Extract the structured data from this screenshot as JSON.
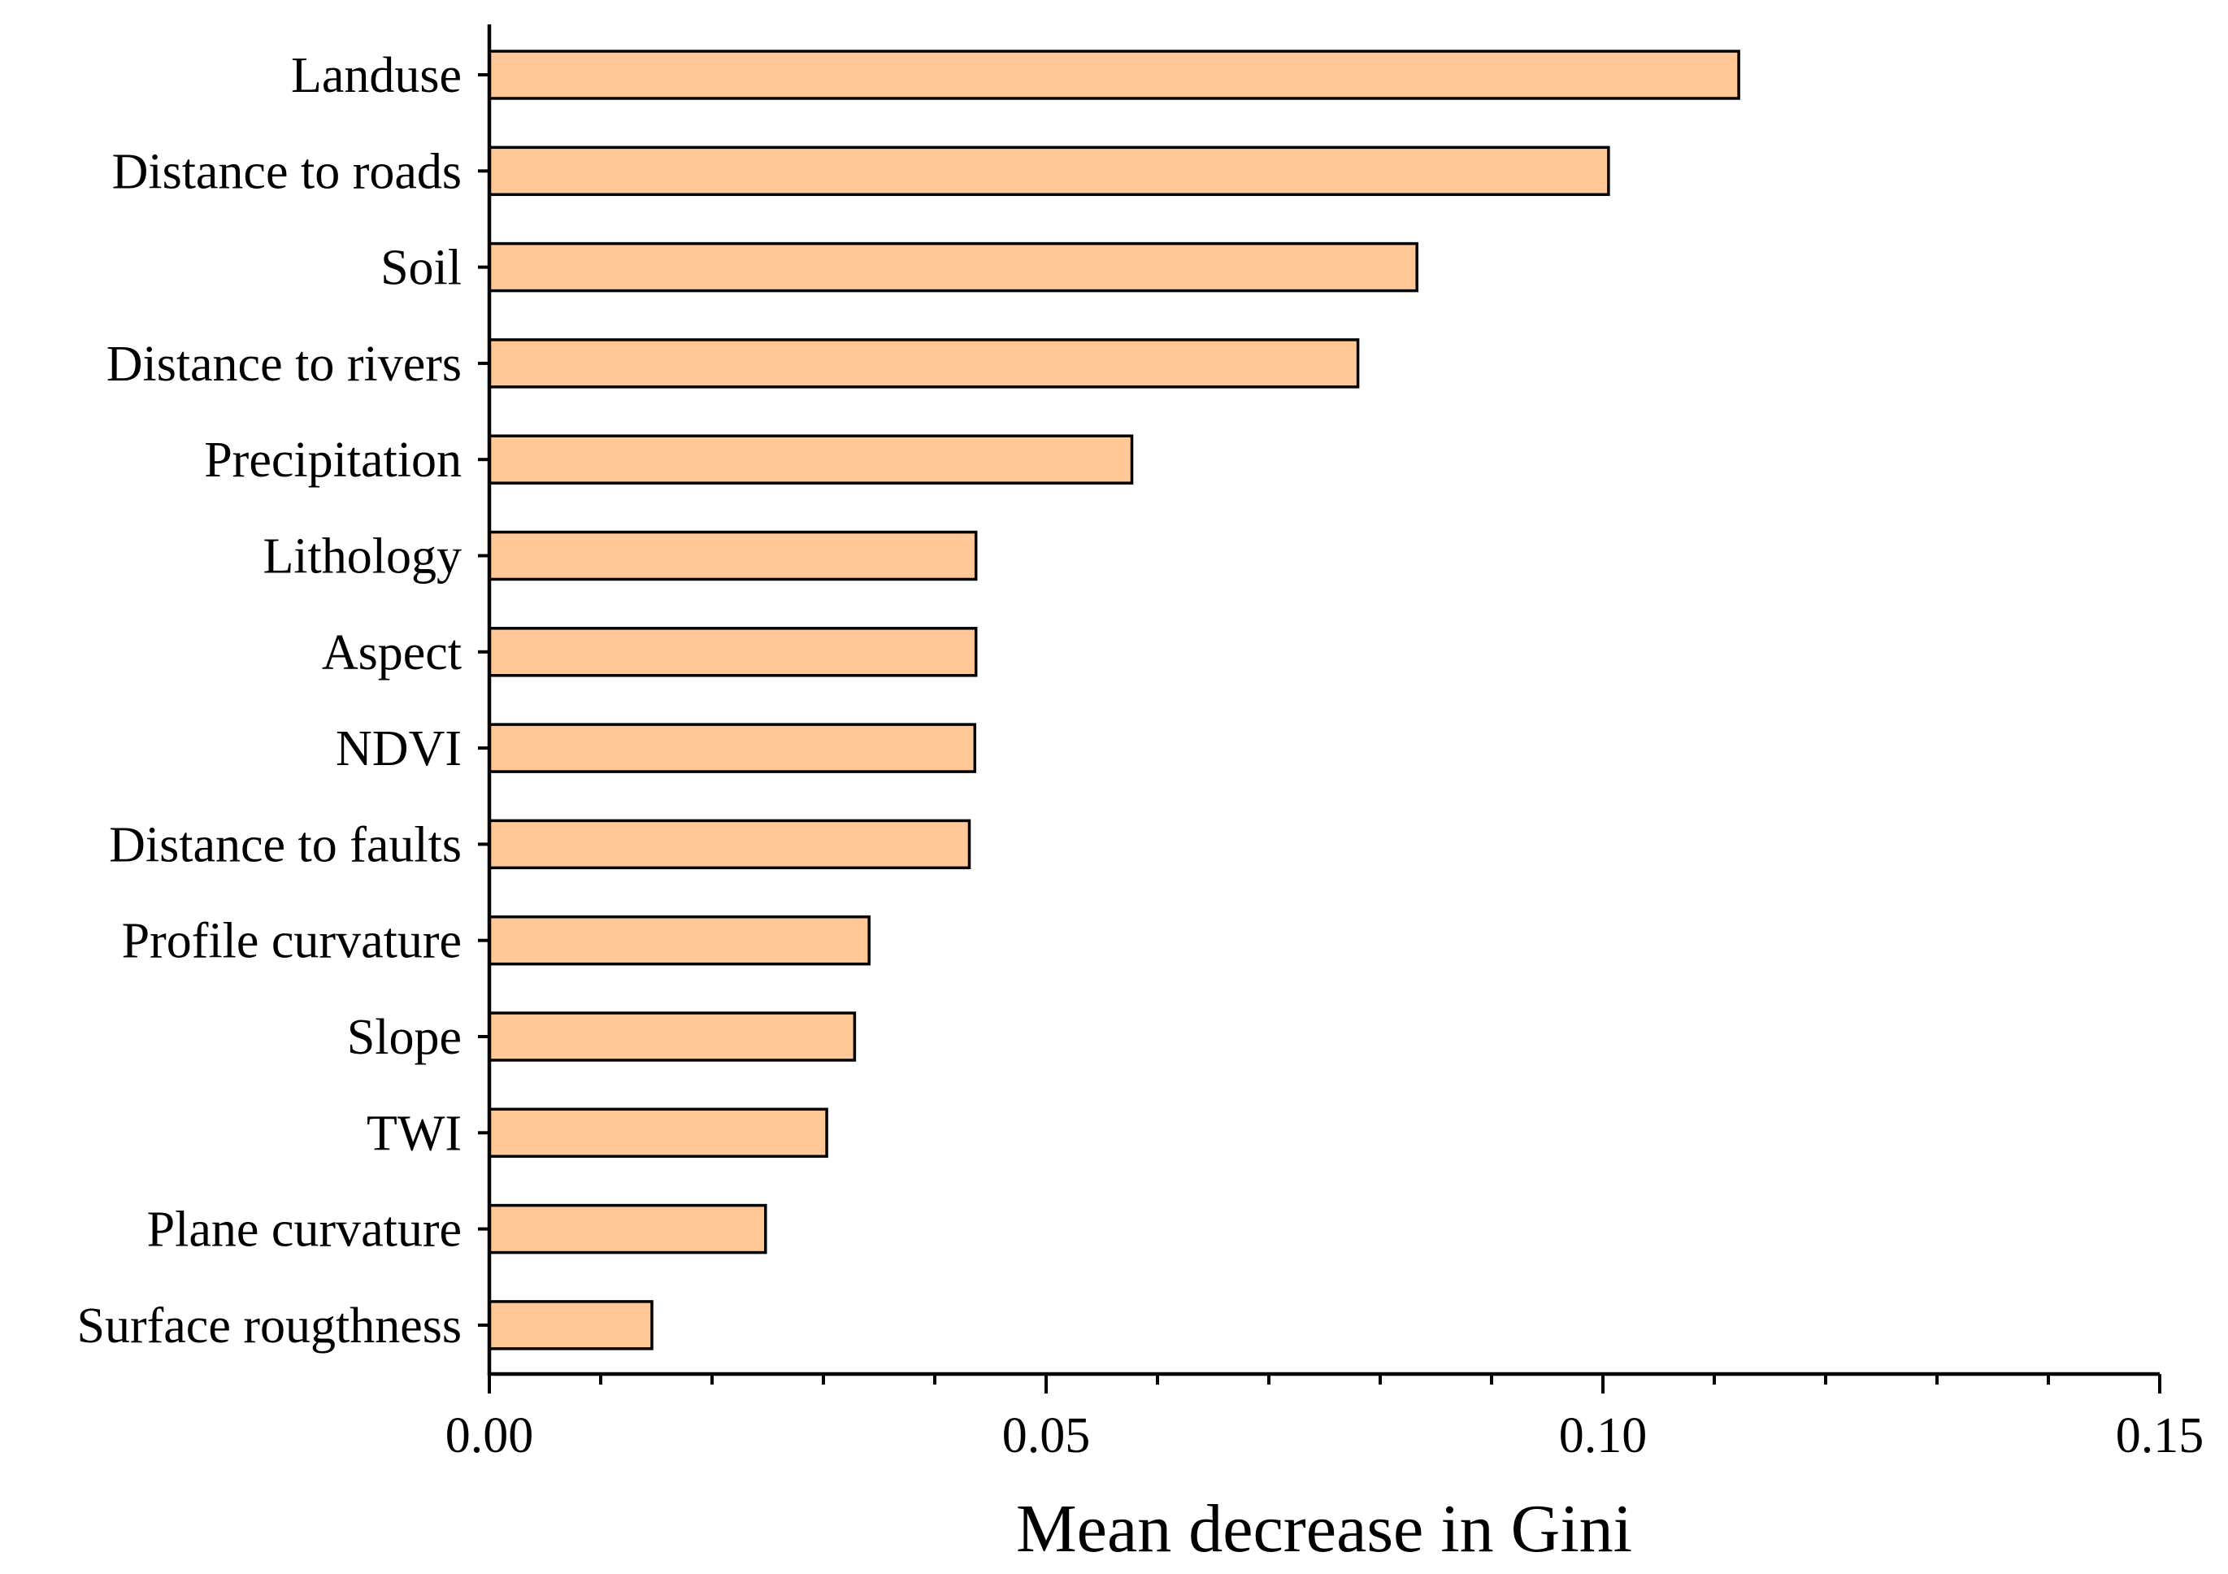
{
  "chart_data": {
    "type": "bar",
    "orientation": "horizontal",
    "title": "",
    "xlabel": "Mean decrease in Gini",
    "ylabel": "",
    "xlim": [
      0,
      0.15
    ],
    "x_ticks": [
      0.0,
      0.05,
      0.1,
      0.15
    ],
    "x_tick_labels": [
      "0.00",
      "0.05",
      "0.10",
      "0.15"
    ],
    "x_minor_tick_step": 0.01,
    "grid": false,
    "legend": "none",
    "bar_color": "#FFC896",
    "edge_color": "#000000",
    "categories": [
      "Landuse",
      "Distance to roads",
      "Soil",
      "Distance to rivers",
      "Precipitation",
      "Lithology",
      "Aspect",
      "NDVI",
      "Distance to faults",
      "Profile curvature",
      "Slope",
      "TWI",
      "Plane curvature",
      "Surface rougthness"
    ],
    "values": [
      0.1122,
      0.1005,
      0.0833,
      0.078,
      0.0577,
      0.0437,
      0.0437,
      0.0436,
      0.0431,
      0.0341,
      0.0328,
      0.0303,
      0.0248,
      0.0146
    ]
  }
}
